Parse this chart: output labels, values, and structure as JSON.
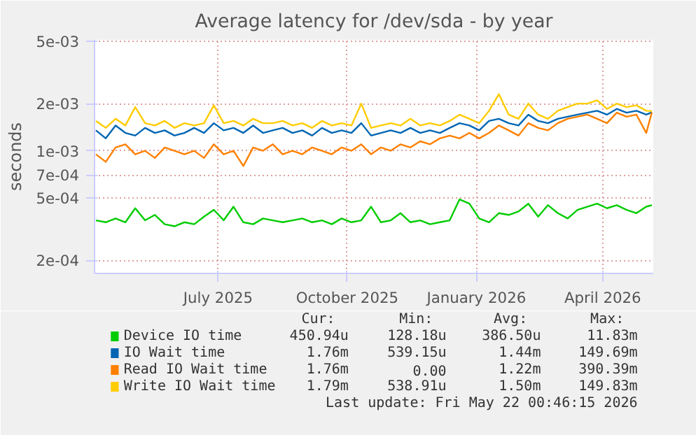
{
  "chart_data": {
    "type": "line",
    "title": "Average latency for /dev/sda - by year",
    "ylabel": "seconds",
    "log": "y",
    "grid": true,
    "legend": "bottom",
    "marker": "none",
    "line_style": "solid",
    "xlim": [
      "2025-04-19",
      "2026-05-22"
    ],
    "xticks": [
      {
        "value": "2025-07-16",
        "label": "July 2025"
      },
      {
        "value": "2025-10-16",
        "label": "October 2025"
      },
      {
        "value": "2026-01-16",
        "label": "January 2026"
      },
      {
        "value": "2026-04-16",
        "label": "April 2026"
      }
    ],
    "ylim": [
      0.000165,
      0.0051
    ],
    "yticks": [
      {
        "value": 0.0002,
        "label": "2e-04"
      },
      {
        "value": 0.0005,
        "label": "5e-04"
      },
      {
        "value": 0.0007,
        "label": "7e-04"
      },
      {
        "value": 0.001,
        "label": "1e-03"
      },
      {
        "value": 0.002,
        "label": "2e-03"
      },
      {
        "value": 0.005,
        "label": "5e-03"
      }
    ],
    "x": [
      "2025-04-20",
      "2025-04-27",
      "2025-05-04",
      "2025-05-11",
      "2025-05-18",
      "2025-05-25",
      "2025-06-01",
      "2025-06-08",
      "2025-06-15",
      "2025-06-22",
      "2025-06-29",
      "2025-07-06",
      "2025-07-13",
      "2025-07-20",
      "2025-07-27",
      "2025-08-03",
      "2025-08-10",
      "2025-08-17",
      "2025-08-24",
      "2025-08-31",
      "2025-09-07",
      "2025-09-14",
      "2025-09-21",
      "2025-09-28",
      "2025-10-05",
      "2025-10-12",
      "2025-10-19",
      "2025-10-26",
      "2025-11-02",
      "2025-11-09",
      "2025-11-16",
      "2025-11-23",
      "2025-11-30",
      "2025-12-07",
      "2025-12-14",
      "2025-12-21",
      "2025-12-28",
      "2026-01-04",
      "2026-01-11",
      "2026-01-18",
      "2026-01-25",
      "2026-02-01",
      "2026-02-08",
      "2026-02-15",
      "2026-02-22",
      "2026-03-01",
      "2026-03-08",
      "2026-03-15",
      "2026-03-22",
      "2026-03-29",
      "2026-04-05",
      "2026-04-12",
      "2026-04-19",
      "2026-04-26",
      "2026-05-03",
      "2026-05-10",
      "2026-05-17",
      "2026-05-21"
    ],
    "series": [
      {
        "name": "Device IO time",
        "color": "#00cc00",
        "values": [
          0.00036,
          0.00035,
          0.00037,
          0.00035,
          0.00043,
          0.00036,
          0.00039,
          0.00034,
          0.00033,
          0.00035,
          0.00034,
          0.00038,
          0.00042,
          0.00036,
          0.00044,
          0.00035,
          0.00034,
          0.00037,
          0.00036,
          0.00035,
          0.00036,
          0.00037,
          0.00035,
          0.00036,
          0.00034,
          0.00037,
          0.00035,
          0.00036,
          0.00044,
          0.00035,
          0.00036,
          0.0004,
          0.00035,
          0.00036,
          0.00034,
          0.00035,
          0.00036,
          0.00049,
          0.00046,
          0.00037,
          0.00035,
          0.0004,
          0.00039,
          0.00041,
          0.00046,
          0.00038,
          0.00045,
          0.0004,
          0.00037,
          0.00042,
          0.00044,
          0.00046,
          0.00043,
          0.00045,
          0.00042,
          0.0004,
          0.00044,
          0.00045
        ]
      },
      {
        "name": "IO Wait time",
        "color": "#0066b3",
        "values": [
          0.00135,
          0.0012,
          0.00145,
          0.0013,
          0.00125,
          0.0014,
          0.0013,
          0.00135,
          0.00125,
          0.0013,
          0.0014,
          0.0013,
          0.0015,
          0.00135,
          0.0014,
          0.0013,
          0.00145,
          0.0013,
          0.00135,
          0.0014,
          0.0013,
          0.00135,
          0.00125,
          0.0014,
          0.0013,
          0.00135,
          0.0013,
          0.0015,
          0.00125,
          0.0013,
          0.00135,
          0.0013,
          0.0014,
          0.0013,
          0.00135,
          0.0013,
          0.0014,
          0.0015,
          0.00145,
          0.00135,
          0.00155,
          0.0016,
          0.0015,
          0.00145,
          0.0017,
          0.00155,
          0.0015,
          0.0016,
          0.00165,
          0.0017,
          0.00175,
          0.0018,
          0.0017,
          0.00185,
          0.00175,
          0.0018,
          0.0017,
          0.00176
        ]
      },
      {
        "name": "Read IO Wait time",
        "color": "#ff8000",
        "values": [
          0.00095,
          0.00085,
          0.00105,
          0.0011,
          0.00095,
          0.001,
          0.0009,
          0.00105,
          0.001,
          0.00095,
          0.001,
          0.0009,
          0.0011,
          0.00095,
          0.001,
          0.0008,
          0.00105,
          0.001,
          0.0011,
          0.00095,
          0.001,
          0.00095,
          0.00105,
          0.001,
          0.00095,
          0.00105,
          0.001,
          0.0011,
          0.00095,
          0.00105,
          0.001,
          0.0011,
          0.00105,
          0.00115,
          0.0011,
          0.0012,
          0.00125,
          0.0012,
          0.0013,
          0.0012,
          0.0013,
          0.00145,
          0.00135,
          0.00125,
          0.0015,
          0.0014,
          0.00135,
          0.0015,
          0.0016,
          0.00165,
          0.0017,
          0.0016,
          0.0015,
          0.00175,
          0.00165,
          0.0017,
          0.0013,
          0.00176
        ]
      },
      {
        "name": "Write IO Wait time",
        "color": "#ffcc00",
        "values": [
          0.00155,
          0.0014,
          0.0016,
          0.00145,
          0.0019,
          0.0015,
          0.00145,
          0.00155,
          0.0014,
          0.0015,
          0.00145,
          0.0015,
          0.00195,
          0.0015,
          0.00155,
          0.00145,
          0.0016,
          0.0015,
          0.0015,
          0.00155,
          0.00145,
          0.0015,
          0.0014,
          0.00155,
          0.00145,
          0.0015,
          0.00145,
          0.002,
          0.0014,
          0.00145,
          0.0015,
          0.00145,
          0.0016,
          0.00145,
          0.0015,
          0.00145,
          0.00155,
          0.0017,
          0.0016,
          0.0015,
          0.0018,
          0.0023,
          0.0017,
          0.0016,
          0.002,
          0.0017,
          0.0016,
          0.0018,
          0.0019,
          0.002,
          0.002,
          0.0021,
          0.00185,
          0.002,
          0.0019,
          0.00195,
          0.0018,
          0.00179
        ]
      }
    ],
    "annotations": [
      "Cur:",
      "Min:",
      "Avg:",
      "Max:",
      "450.94u",
      "128.18u",
      "386.50u",
      "11.83m",
      "1.76m",
      "539.15u",
      "1.44m",
      "149.69m",
      "1.76m",
      "0.00",
      "1.22m",
      "390.39m",
      "1.79m",
      "538.91u",
      "1.50m",
      "149.83m",
      "Last update: Fri May 22 00:46:15 2026"
    ]
  }
}
